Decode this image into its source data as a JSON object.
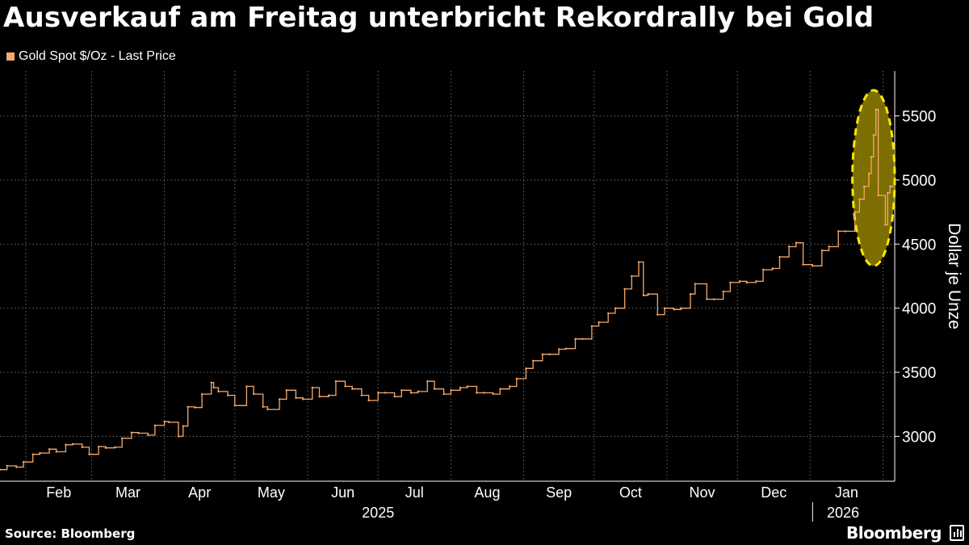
{
  "header": {
    "title": "Ausverkauf am Freitag unterbricht Rekordrally bei Gold"
  },
  "legend": {
    "label": "Gold Spot $/Oz  -  Last Price",
    "color": "#f7a96b"
  },
  "footer": {
    "source": "Source: Bloomberg",
    "brand": "Bloomberg",
    "brand_icon": "bloomberg-terminal-icon"
  },
  "colors": {
    "background": "#000000",
    "series": "#f7a96b",
    "highlight_fill": "#8a7a00",
    "highlight_stroke": "#ffe600",
    "grid": "#6a6a6a",
    "text": "#ffffff"
  },
  "chart_data": {
    "type": "line",
    "title": "Ausverkauf am Freitag unterbricht Rekordrally bei Gold",
    "ylabel": "Dollar je Unze",
    "ylim": [
      2650,
      5850
    ],
    "yticks": [
      3000,
      3500,
      4000,
      4500,
      5000,
      5500
    ],
    "y_axis_position": "right",
    "grid": true,
    "legend_position": "top-left",
    "xlim": [
      "2025-01-21",
      "2026-02-06"
    ],
    "x_tick_labels": [
      "Feb",
      "Mar",
      "Apr",
      "May",
      "Jun",
      "Jul",
      "Aug",
      "Sep",
      "Oct",
      "Nov",
      "Dec",
      "Jan"
    ],
    "x_ticks": [
      "2025-02-01",
      "2025-03-01",
      "2025-04-01",
      "2025-05-01",
      "2025-06-01",
      "2025-07-01",
      "2025-08-01",
      "2025-09-01",
      "2025-10-01",
      "2025-11-01",
      "2025-12-01",
      "2026-01-01",
      "2026-02-01"
    ],
    "years": [
      {
        "label": "2025",
        "center": "2025-07-01"
      },
      {
        "label": "2026",
        "center": "2026-01-15"
      }
    ],
    "highlight": {
      "shape": "ellipse",
      "x_range": [
        "2026-01-19",
        "2026-02-06"
      ],
      "y_range": [
        4330,
        5700
      ]
    },
    "series": [
      {
        "name": "Gold Spot $/Oz  -  Last Price",
        "x": [
          "2025-01-21",
          "2025-01-24",
          "2025-01-28",
          "2025-01-31",
          "2025-02-04",
          "2025-02-07",
          "2025-02-11",
          "2025-02-14",
          "2025-02-18",
          "2025-02-21",
          "2025-02-25",
          "2025-02-28",
          "2025-03-04",
          "2025-03-07",
          "2025-03-11",
          "2025-03-14",
          "2025-03-18",
          "2025-03-21",
          "2025-03-25",
          "2025-03-28",
          "2025-04-01",
          "2025-04-03",
          "2025-04-07",
          "2025-04-09",
          "2025-04-11",
          "2025-04-14",
          "2025-04-17",
          "2025-04-21",
          "2025-04-22",
          "2025-04-24",
          "2025-04-28",
          "2025-05-01",
          "2025-05-06",
          "2025-05-09",
          "2025-05-13",
          "2025-05-15",
          "2025-05-20",
          "2025-05-23",
          "2025-05-27",
          "2025-05-30",
          "2025-06-03",
          "2025-06-06",
          "2025-06-10",
          "2025-06-13",
          "2025-06-17",
          "2025-06-20",
          "2025-06-24",
          "2025-06-27",
          "2025-07-01",
          "2025-07-04",
          "2025-07-08",
          "2025-07-11",
          "2025-07-15",
          "2025-07-18",
          "2025-07-22",
          "2025-07-25",
          "2025-07-29",
          "2025-08-01",
          "2025-08-05",
          "2025-08-08",
          "2025-08-12",
          "2025-08-15",
          "2025-08-19",
          "2025-08-22",
          "2025-08-26",
          "2025-08-29",
          "2025-09-02",
          "2025-09-05",
          "2025-09-09",
          "2025-09-12",
          "2025-09-16",
          "2025-09-19",
          "2025-09-23",
          "2025-09-26",
          "2025-09-30",
          "2025-10-03",
          "2025-10-07",
          "2025-10-10",
          "2025-10-14",
          "2025-10-17",
          "2025-10-20",
          "2025-10-22",
          "2025-10-24",
          "2025-10-28",
          "2025-10-31",
          "2025-11-04",
          "2025-11-07",
          "2025-11-11",
          "2025-11-13",
          "2025-11-18",
          "2025-11-21",
          "2025-11-25",
          "2025-11-28",
          "2025-12-02",
          "2025-12-05",
          "2025-12-09",
          "2025-12-12",
          "2025-12-16",
          "2025-12-19",
          "2025-12-23",
          "2025-12-26",
          "2025-12-29",
          "2026-01-02",
          "2026-01-06",
          "2026-01-09",
          "2026-01-13",
          "2026-01-16",
          "2026-01-20",
          "2026-01-22",
          "2026-01-24",
          "2026-01-26",
          "2026-01-27",
          "2026-01-28",
          "2026-01-29",
          "2026-01-30",
          "2026-02-02",
          "2026-02-03",
          "2026-02-04",
          "2026-02-05"
        ],
        "values": [
          2740,
          2770,
          2760,
          2800,
          2860,
          2870,
          2900,
          2880,
          2935,
          2940,
          2915,
          2860,
          2920,
          2910,
          2915,
          2985,
          3030,
          3025,
          3010,
          3085,
          3115,
          3110,
          3000,
          3080,
          3230,
          3225,
          3330,
          3420,
          3380,
          3350,
          3320,
          3240,
          3390,
          3330,
          3230,
          3210,
          3290,
          3360,
          3300,
          3290,
          3380,
          3310,
          3320,
          3430,
          3390,
          3370,
          3320,
          3280,
          3340,
          3340,
          3310,
          3360,
          3340,
          3350,
          3430,
          3370,
          3330,
          3360,
          3380,
          3390,
          3340,
          3340,
          3330,
          3370,
          3390,
          3450,
          3530,
          3590,
          3640,
          3640,
          3680,
          3685,
          3760,
          3760,
          3860,
          3890,
          3960,
          4000,
          4150,
          4250,
          4360,
          4100,
          4110,
          3950,
          4000,
          3990,
          4000,
          4110,
          4190,
          4070,
          4070,
          4130,
          4200,
          4210,
          4200,
          4210,
          4300,
          4310,
          4400,
          4480,
          4510,
          4340,
          4330,
          4450,
          4480,
          4600,
          4600,
          4750,
          4850,
          4950,
          5050,
          5180,
          5350,
          5550,
          4880,
          4650,
          4900,
          4950,
          4950
        ]
      }
    ]
  }
}
